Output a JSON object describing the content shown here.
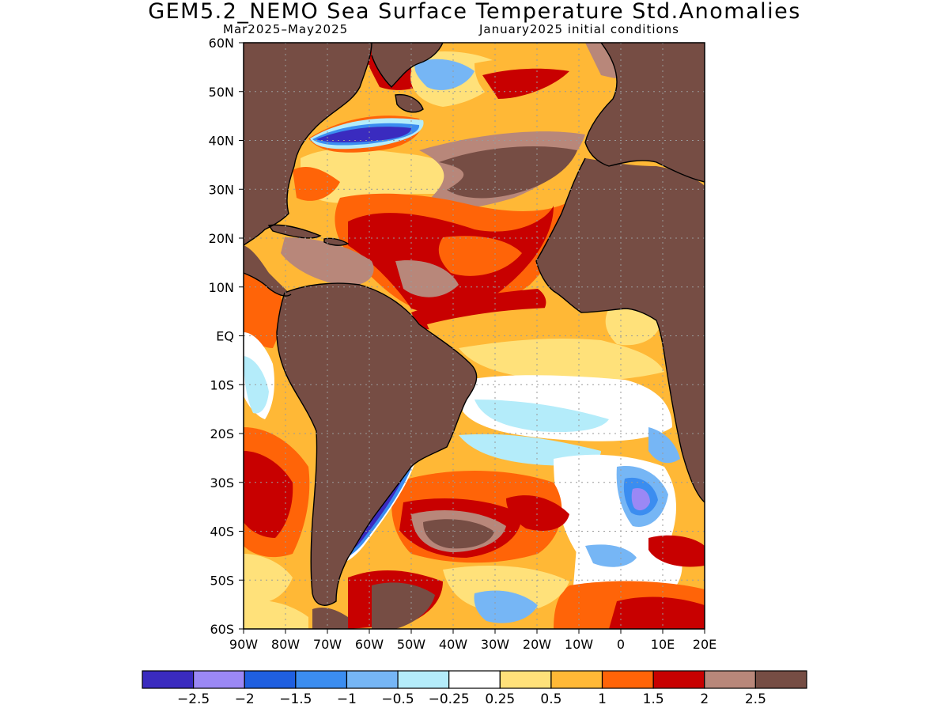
{
  "title": "GEM5.2_NEMO Sea Surface Temperature Std.Anomalies",
  "subtitle_left": "Mar2025–May2025",
  "subtitle_right": "January2025 initial conditions",
  "map": {
    "lon_range": [
      -90,
      20
    ],
    "lat_range": [
      -60,
      60
    ],
    "grid_lines": "dotted",
    "y_labels": [
      {
        "lat": 60,
        "text": "60N"
      },
      {
        "lat": 50,
        "text": "50N"
      },
      {
        "lat": 40,
        "text": "40N"
      },
      {
        "lat": 30,
        "text": "30N"
      },
      {
        "lat": 20,
        "text": "20N"
      },
      {
        "lat": 10,
        "text": "10N"
      },
      {
        "lat": 0,
        "text": "EQ"
      },
      {
        "lat": -10,
        "text": "10S"
      },
      {
        "lat": -20,
        "text": "20S"
      },
      {
        "lat": -30,
        "text": "30S"
      },
      {
        "lat": -40,
        "text": "40S"
      },
      {
        "lat": -50,
        "text": "50S"
      },
      {
        "lat": -60,
        "text": "60S"
      }
    ],
    "x_labels": [
      {
        "lon": -90,
        "text": "90W"
      },
      {
        "lon": -80,
        "text": "80W"
      },
      {
        "lon": -70,
        "text": "70W"
      },
      {
        "lon": -60,
        "text": "60W"
      },
      {
        "lon": -50,
        "text": "50W"
      },
      {
        "lon": -40,
        "text": "40W"
      },
      {
        "lon": -30,
        "text": "30W"
      },
      {
        "lon": -20,
        "text": "20W"
      },
      {
        "lon": -10,
        "text": "10W"
      },
      {
        "lon": 0,
        "text": "0"
      },
      {
        "lon": 10,
        "text": "10E"
      },
      {
        "lon": 20,
        "text": "20E"
      }
    ]
  },
  "colorbar": {
    "colors": [
      "#3a2bbf",
      "#9b88f5",
      "#1f5fe0",
      "#3b8df0",
      "#76b6f5",
      "#b4ecfa",
      "#ffffff",
      "#ffe17a",
      "#ffb836",
      "#ff6408",
      "#c80000",
      "#b8877a",
      "#764d44"
    ],
    "labels": [
      "−2.5",
      "−2",
      "−1.5",
      "−1",
      "−0.5",
      "−0.25",
      "0.25",
      "0.5",
      "1",
      "1.5",
      "2",
      "2.5"
    ]
  },
  "colors": {
    "land": "#764d44",
    "coastline": "#000000",
    "grid": "#9a9a9a"
  }
}
